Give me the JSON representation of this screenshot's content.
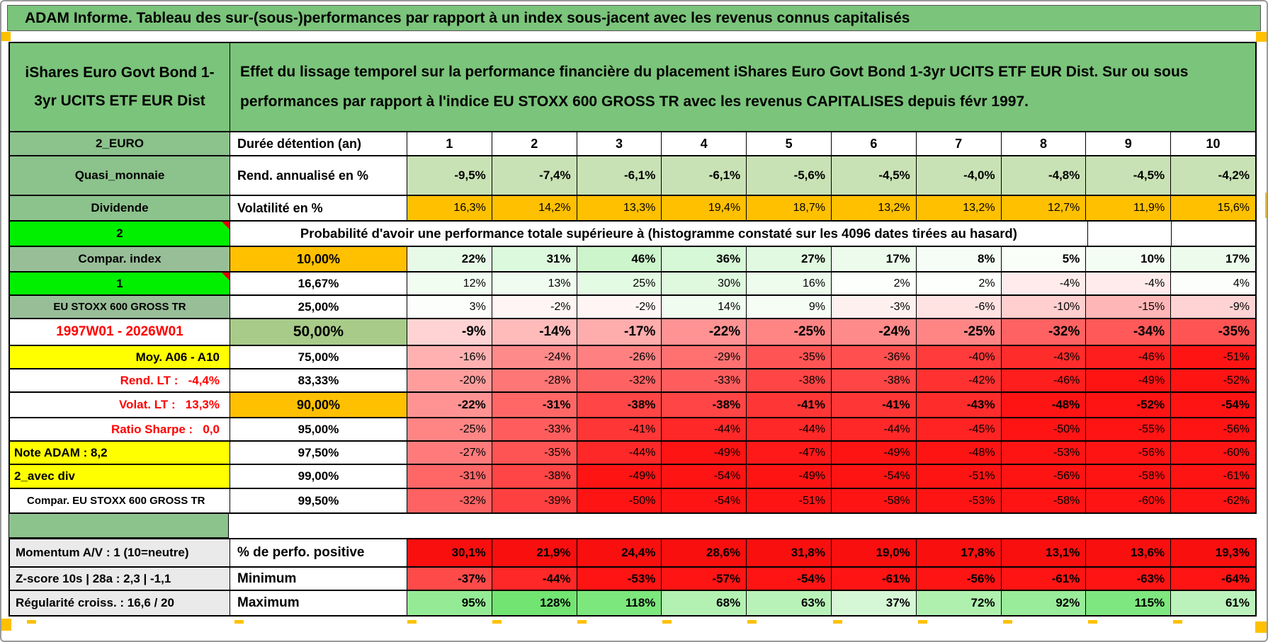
{
  "title": "ADAM Informe. Tableau des sur-(sous-)performances par rapport à un index sous-jacent avec les revenus connus capitalisés",
  "header": {
    "asset_name": "iShares Euro Govt Bond 1-3yr UCITS ETF EUR Dist",
    "description": "Effet du lissage temporel sur la performance financière du placement iShares Euro Govt Bond 1-3yr UCITS ETF EUR Dist. Sur ou sous performances par rapport à l'indice EU STOXX 600 GROSS TR avec les revenus CAPITALISES depuis févr 1997."
  },
  "table": {
    "duration_row": {
      "label": "2_EURO",
      "name": "Durée détention (an)",
      "cols": [
        "1",
        "2",
        "3",
        "4",
        "5",
        "6",
        "7",
        "8",
        "9",
        "10"
      ]
    },
    "stat_rows": [
      {
        "label": "Quasi_monnaie",
        "name": "Rend. annualisé en %",
        "cell_style": "lightgreen",
        "bold": true,
        "values": [
          "-9,5%",
          "-7,4%",
          "-6,1%",
          "-6,1%",
          "-5,6%",
          "-4,5%",
          "-4,0%",
          "-4,8%",
          "-4,5%",
          "-4,2%"
        ]
      },
      {
        "label": "Dividende",
        "name": "Volatilité en %",
        "cell_style": "orange",
        "bold": false,
        "values": [
          "16,3%",
          "14,2%",
          "13,3%",
          "19,4%",
          "18,7%",
          "13,2%",
          "13,2%",
          "12,7%",
          "11,9%",
          "15,6%"
        ]
      }
    ],
    "probability_banner": {
      "label": "2",
      "text": "Probabilité d'avoir une performance totale supérieure à (histogramme constaté sur les 4096 dates tirées au hasard)"
    },
    "percentile_rows": [
      {
        "label": "Compar. index",
        "label_style": "sage",
        "pct": "10,00%",
        "pct_style": "orange",
        "bold": true,
        "values": [
          22,
          31,
          46,
          36,
          27,
          17,
          8,
          5,
          10,
          17
        ]
      },
      {
        "label": "1",
        "label_style": "bright",
        "pct": "16,67%",
        "bold": false,
        "values": [
          12,
          13,
          25,
          30,
          16,
          2,
          2,
          -4,
          -4,
          4
        ]
      },
      {
        "label": "EU STOXX 600 GROSS TR",
        "label_style": "sage-small",
        "pct": "25,00%",
        "bold": false,
        "values": [
          3,
          -2,
          -2,
          14,
          9,
          -3,
          -6,
          -10,
          -15,
          -9
        ]
      },
      {
        "label": "1997W01 - 2026W01",
        "label_style": "red-center",
        "pct": "50,00%",
        "pct_style": "green",
        "bold": true,
        "big": true,
        "values": [
          -9,
          -14,
          -17,
          -22,
          -25,
          -24,
          -25,
          -32,
          -34,
          -35
        ]
      },
      {
        "label": "Moy. A06 - A10",
        "label_style": "yellow-right",
        "pct": "75,00%",
        "bold": false,
        "values": [
          -16,
          -24,
          -26,
          -29,
          -35,
          -36,
          -40,
          -43,
          -46,
          -51
        ]
      },
      {
        "label": "Rend. LT :   -4,4%",
        "label_style": "red-right",
        "pct": "83,33%",
        "bold": false,
        "values": [
          -20,
          -28,
          -32,
          -33,
          -38,
          -38,
          -42,
          -46,
          -49,
          -52
        ]
      },
      {
        "label": "Volat. LT :   13,3%",
        "label_style": "red-right",
        "pct": "90,00%",
        "pct_style": "orange",
        "bold": true,
        "values": [
          -22,
          -31,
          -38,
          -38,
          -41,
          -41,
          -43,
          -48,
          -52,
          -54
        ]
      },
      {
        "label": "Ratio Sharpe :   0,0",
        "label_style": "red-right",
        "pct": "95,00%",
        "bold": false,
        "values": [
          -25,
          -33,
          -41,
          -44,
          -44,
          -44,
          -45,
          -50,
          -55,
          -56
        ]
      },
      {
        "label": "Note ADAM : 8,2",
        "label_style": "yellow-left",
        "pct": "97,50%",
        "bold": false,
        "values": [
          -27,
          -35,
          -44,
          -49,
          -47,
          -49,
          -48,
          -53,
          -56,
          -60
        ]
      },
      {
        "label": "2_avec div",
        "label_style": "yellow-left",
        "pct": "99,00%",
        "bold": false,
        "values": [
          -31,
          -38,
          -49,
          -54,
          -49,
          -54,
          -51,
          -56,
          -58,
          -61
        ]
      },
      {
        "label": "Compar. EU STOXX 600 GROSS TR",
        "label_style": "white-small",
        "pct": "99,50%",
        "bold": false,
        "values": [
          -32,
          -39,
          -50,
          -54,
          -51,
          -58,
          -53,
          -58,
          -60,
          -62
        ]
      }
    ],
    "summary_rows": [
      {
        "label": "Momentum A/V : 1 (10=neutre)",
        "name": "% de perfo. positive",
        "cell_style": "red",
        "values": [
          "30,1%",
          "21,9%",
          "24,4%",
          "28,6%",
          "31,8%",
          "19,0%",
          "17,8%",
          "13,1%",
          "13,6%",
          "19,3%"
        ]
      },
      {
        "label": "Z-score 10s | 28a : 2,3 | -1,1",
        "name": "Minimum",
        "cell_style": "scale",
        "nums": [
          -37,
          -44,
          -53,
          -57,
          -54,
          -61,
          -56,
          -61,
          -63,
          -64
        ],
        "values": [
          "-37%",
          "-44%",
          "-53%",
          "-57%",
          "-54%",
          "-61%",
          "-56%",
          "-61%",
          "-63%",
          "-64%"
        ]
      },
      {
        "label": "Régularité croiss. : 16,6 / 20",
        "name": "Maximum",
        "cell_style": "scale",
        "nums": [
          95,
          128,
          118,
          68,
          63,
          37,
          72,
          92,
          115,
          61
        ],
        "values": [
          "95%",
          "128%",
          "118%",
          "68%",
          "63%",
          "37%",
          "72%",
          "92%",
          "115%",
          "61%"
        ]
      }
    ],
    "colors": {
      "header_green": "#7BC47B",
      "label_green": "#8CC28C",
      "label_sage": "#98BE98",
      "bright_green": "#00F000",
      "orange": "#FFC000",
      "yellow": "#FFFF00",
      "light_green_cells": "#C9E2B5",
      "pct_green": "#A8CB89",
      "summary_red": "#FA0F0F",
      "gray_label": "#EAEAEA"
    }
  }
}
